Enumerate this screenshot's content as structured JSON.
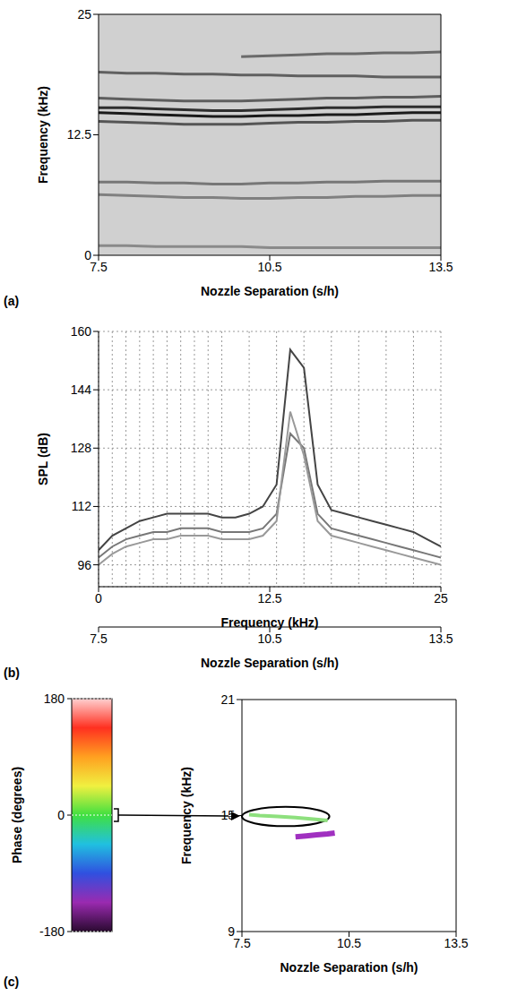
{
  "chart_data": [
    {
      "panel": "(a)",
      "type": "line",
      "x_label": "Nozzle Separation (s/h)",
      "y_label": "Frequency (kHz)",
      "xlim": [
        7.5,
        13.5
      ],
      "xticks": [
        7.5,
        10.5,
        13.5
      ],
      "ylim": [
        0,
        25
      ],
      "yticks": [
        0,
        12.5,
        25
      ],
      "grid": false,
      "x": [
        7.5,
        8,
        8.5,
        9,
        9.5,
        10,
        10.5,
        11,
        11.5,
        12,
        12.5,
        13,
        13.5
      ],
      "series": [
        {
          "color": "#1a1a1a",
          "values": [
            14.8,
            14.7,
            14.6,
            14.5,
            14.4,
            14.4,
            14.5,
            14.5,
            14.6,
            14.6,
            14.7,
            14.8,
            14.8
          ]
        },
        {
          "color": "#2e2e2e",
          "values": [
            15.3,
            15.3,
            15.2,
            15.1,
            15.0,
            15.0,
            15.1,
            15.2,
            15.3,
            15.3,
            15.4,
            15.4,
            15.4
          ]
        },
        {
          "color": "#555555",
          "values": [
            13.9,
            13.8,
            13.7,
            13.6,
            13.6,
            13.6,
            13.7,
            13.8,
            13.8,
            13.9,
            13.9,
            14.0,
            14.0
          ]
        },
        {
          "color": "#5e5e5e",
          "values": [
            16.3,
            16.2,
            16.1,
            16.0,
            16.0,
            16.0,
            16.1,
            16.2,
            16.3,
            16.3,
            16.4,
            16.4,
            16.5
          ]
        },
        {
          "color": "#606060",
          "values": [
            19.0,
            18.9,
            18.9,
            18.8,
            18.8,
            18.7,
            18.7,
            18.6,
            18.6,
            18.6,
            18.5,
            18.5,
            18.5
          ]
        },
        {
          "color": "#6a6a6a",
          "values": [
            null,
            null,
            null,
            null,
            null,
            20.6,
            20.7,
            20.8,
            20.9,
            20.9,
            21.0,
            21.0,
            21.1
          ]
        },
        {
          "color": "#777777",
          "values": [
            7.6,
            7.6,
            7.5,
            7.5,
            7.4,
            7.4,
            7.5,
            7.5,
            7.6,
            7.6,
            7.7,
            7.7,
            7.7
          ]
        },
        {
          "color": "#808080",
          "values": [
            6.3,
            6.2,
            6.1,
            6.0,
            6.0,
            5.9,
            5.9,
            6.0,
            6.0,
            6.1,
            6.1,
            6.2,
            6.2
          ]
        },
        {
          "color": "#8a8a8a",
          "values": [
            1.0,
            1.0,
            0.9,
            0.9,
            0.9,
            0.9,
            0.8,
            0.8,
            0.8,
            0.8,
            0.8,
            0.8,
            0.8
          ]
        }
      ]
    },
    {
      "panel": "(b)",
      "type": "line",
      "x_label": "Frequency (kHz)",
      "y_label": "SPL (dB)",
      "x2label": "Nozzle Separation (s/h)",
      "x2lim": [
        7.5,
        13.5
      ],
      "x2ticks": [
        7.5,
        10.5,
        13.5
      ],
      "xlim": [
        0,
        25
      ],
      "xticks": [
        0,
        12.5,
        25
      ],
      "ylim": [
        90,
        160
      ],
      "yticks": [
        96,
        112,
        128,
        144,
        160
      ],
      "grid": true,
      "x": [
        0,
        1,
        2,
        3,
        4,
        5,
        6,
        7,
        8,
        9,
        10,
        11,
        12,
        13,
        14,
        15,
        16,
        17,
        18,
        19,
        20,
        21,
        22,
        23,
        24,
        25
      ],
      "series": [
        {
          "color": "#777777",
          "values": [
            98,
            101,
            103,
            104,
            105,
            105,
            106,
            106,
            106,
            105,
            105,
            105,
            106,
            110,
            132,
            128,
            110,
            106,
            105,
            104,
            103,
            102,
            101,
            100,
            99,
            98
          ]
        },
        {
          "color": "#444444",
          "values": [
            100,
            104,
            106,
            108,
            109,
            110,
            110,
            110,
            110,
            109,
            109,
            110,
            112,
            118,
            155,
            150,
            118,
            111,
            110,
            109,
            108,
            107,
            106,
            105,
            103,
            101
          ]
        },
        {
          "color": "#999999",
          "values": [
            96,
            99,
            101,
            102,
            103,
            103,
            104,
            104,
            104,
            103,
            103,
            103,
            104,
            108,
            138,
            126,
            108,
            104,
            103,
            102,
            101,
            100,
            99,
            98,
            97,
            96
          ]
        }
      ]
    },
    {
      "panel": "(c)",
      "type": "line",
      "x_label": "Nozzle Separation (s/h)",
      "y_label": "Frequency (kHz)",
      "xlim": [
        7.5,
        13.5
      ],
      "xticks": [
        7.5,
        10.5,
        13.5
      ],
      "ylim": [
        9,
        21
      ],
      "yticks": [
        9,
        15,
        21
      ],
      "grid": false,
      "series": [
        {
          "color": "#8ee07e",
          "x": [
            7.7,
            8.0,
            8.5,
            9.0,
            9.5,
            9.9
          ],
          "values": [
            15.05,
            15.0,
            14.95,
            14.9,
            14.82,
            14.75
          ]
        },
        {
          "color": "#a030c0",
          "x": [
            9.0,
            9.3,
            9.6,
            9.9,
            10.1
          ],
          "values": [
            13.9,
            13.95,
            14.0,
            14.05,
            14.1
          ]
        }
      ],
      "annotation": {
        "shape": "ellipse",
        "x": [
          7.5,
          9.95
        ],
        "y": [
          14.45,
          15.45
        ],
        "phase": 0
      },
      "colorbar": {
        "label": "Phase (degrees)",
        "range": [
          -180,
          180
        ],
        "ticks": [
          -180,
          0,
          180
        ],
        "colors": [
          "#2a0a30",
          "#9a2ab0",
          "#3050e0",
          "#20c0e0",
          "#40e040",
          "#f0f040",
          "#ffa020",
          "#ff3020",
          "#ffd0d0"
        ]
      }
    }
  ]
}
